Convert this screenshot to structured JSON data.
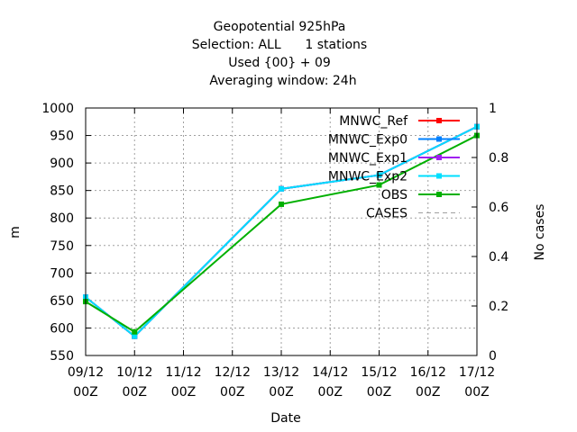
{
  "chart_data": {
    "type": "line",
    "title_lines": [
      "Geopotential 925hPa",
      "Selection: ALL      1 stations",
      "Used {00} + 09",
      "Averaging window: 24h"
    ],
    "xlabel": "Date",
    "ylabel": "m",
    "y2label": "No cases",
    "x_ticks": [
      [
        "09/12",
        "00Z"
      ],
      [
        "10/12",
        "00Z"
      ],
      [
        "11/12",
        "00Z"
      ],
      [
        "12/12",
        "00Z"
      ],
      [
        "13/12",
        "00Z"
      ],
      [
        "14/12",
        "00Z"
      ],
      [
        "15/12",
        "00Z"
      ],
      [
        "16/12",
        "00Z"
      ],
      [
        "17/12",
        "00Z"
      ]
    ],
    "xlim": [
      0,
      8
    ],
    "ylim": [
      550,
      1000
    ],
    "y_ticks": [
      "550",
      "600",
      "650",
      "700",
      "750",
      "800",
      "850",
      "900",
      "950",
      "1000"
    ],
    "y2lim": [
      0,
      1
    ],
    "y2_ticks": [
      "0",
      "0.2",
      "0.4",
      "0.6",
      "0.8",
      "1"
    ],
    "grid": true,
    "legend_position": "top-right",
    "series": [
      {
        "name": "MNWC_Ref",
        "color": "#ff0000",
        "dash": "",
        "marker": true,
        "x": [
          0,
          1,
          4,
          6,
          8
        ],
        "values": [
          656,
          585,
          853,
          878,
          966
        ]
      },
      {
        "name": "MNWC_Exp0",
        "color": "#0080ff",
        "dash": "",
        "marker": true,
        "x": [
          0,
          1,
          4,
          6,
          8
        ],
        "values": [
          656,
          585,
          853,
          878,
          966
        ]
      },
      {
        "name": "MNWC_Exp1",
        "color": "#a020f0",
        "dash": "",
        "marker": true,
        "x": [
          0,
          1,
          4,
          6,
          8
        ],
        "values": [
          656,
          585,
          853,
          878,
          966
        ]
      },
      {
        "name": "MNWC_Exp2",
        "color": "#00dfff",
        "dash": "",
        "marker": true,
        "x": [
          0,
          1,
          4,
          6,
          8
        ],
        "values": [
          656,
          585,
          853,
          878,
          966
        ]
      },
      {
        "name": "OBS",
        "color": "#00b000",
        "dash": "",
        "marker": true,
        "x": [
          0,
          1,
          4,
          6,
          8
        ],
        "values": [
          648,
          593,
          825,
          860,
          950
        ]
      },
      {
        "name": "CASES",
        "color": "#a0a0a0",
        "dash": "5,4",
        "marker": false,
        "x": [],
        "values": []
      }
    ]
  }
}
